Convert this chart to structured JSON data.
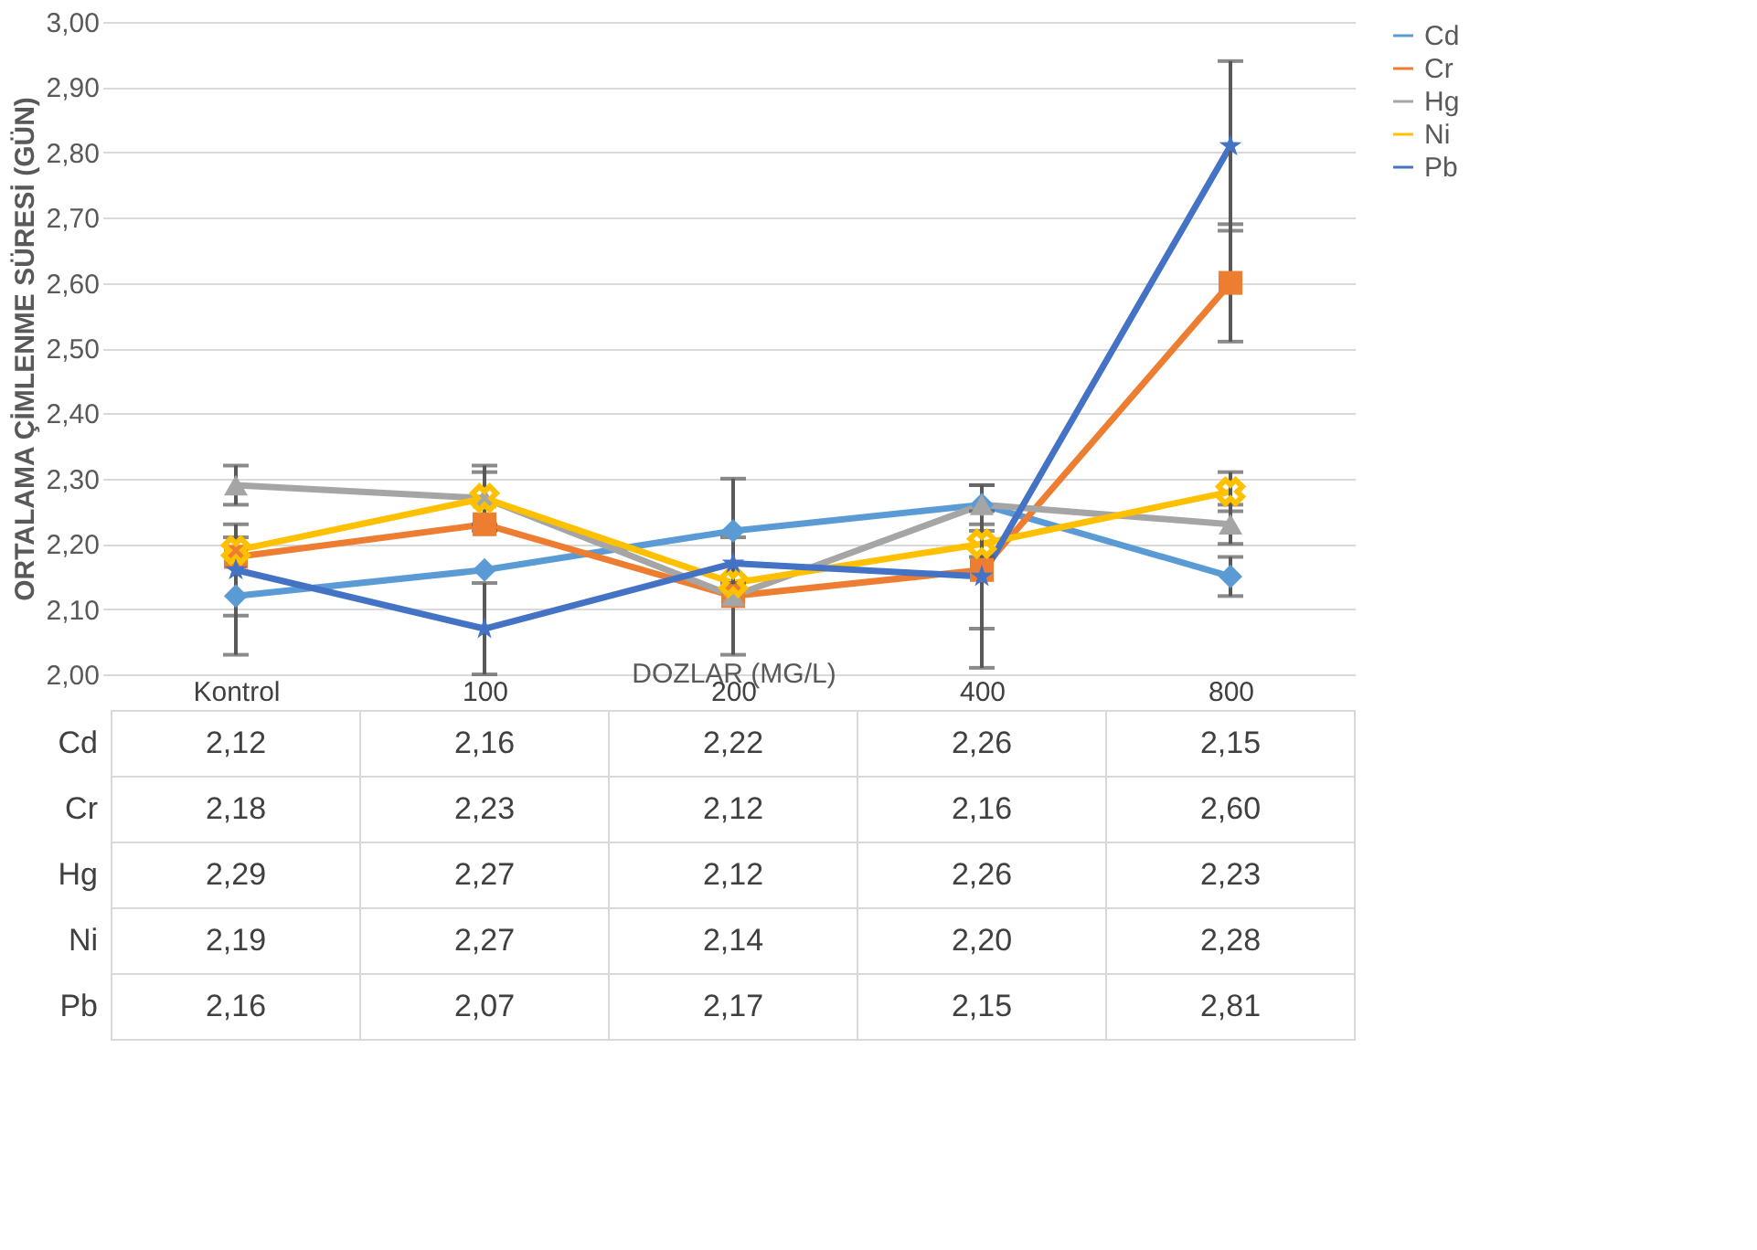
{
  "chart_data": {
    "type": "line",
    "xlabel": "DOZLAR (MG/L)",
    "ylabel": "ORTALAMA ÇİMLENME SÜRESİ (GÜN)",
    "categories": [
      "Kontrol",
      "100",
      "200",
      "400",
      "800"
    ],
    "ylim": [
      2.0,
      3.0
    ],
    "yticks": [
      {
        "value": 2.0,
        "label": "2,00"
      },
      {
        "value": 2.1,
        "label": "2,10"
      },
      {
        "value": 2.2,
        "label": "2,20"
      },
      {
        "value": 2.3,
        "label": "2,30"
      },
      {
        "value": 2.4,
        "label": "2,40"
      },
      {
        "value": 2.5,
        "label": "2,50"
      },
      {
        "value": 2.6,
        "label": "2,60"
      },
      {
        "value": 2.7,
        "label": "2,70"
      },
      {
        "value": 2.8,
        "label": "2,80"
      },
      {
        "value": 2.9,
        "label": "2,90"
      },
      {
        "value": 3.0,
        "label": "3,00"
      }
    ],
    "grid": "y",
    "legend": "right",
    "series": [
      {
        "name": "Cd",
        "color": "#5b9bd5",
        "marker": "diamond",
        "values": [
          2.12,
          2.16,
          2.22,
          2.26,
          2.15
        ],
        "value_labels": [
          "2,12",
          "2,16",
          "2,22",
          "2,26",
          "2,15"
        ],
        "errors": [
          0.09,
          null,
          0.08,
          0.03,
          0.03
        ]
      },
      {
        "name": "Cr",
        "color": "#ed7d31",
        "marker": "square",
        "values": [
          2.18,
          2.23,
          2.12,
          2.16,
          2.6
        ],
        "value_labels": [
          "2,18",
          "2,23",
          "2,12",
          "2,16",
          "2,60"
        ],
        "errors": [
          null,
          null,
          null,
          0.09,
          0.09
        ]
      },
      {
        "name": "Hg",
        "color": "#a5a5a5",
        "marker": "triangle",
        "values": [
          2.29,
          2.27,
          2.12,
          2.26,
          2.23
        ],
        "value_labels": [
          "2,29",
          "2,27",
          "2,12",
          "2,26",
          "2,23"
        ],
        "errors": [
          0.03,
          0.05,
          0.09,
          null,
          0.03
        ]
      },
      {
        "name": "Ni",
        "color": "#ffc000",
        "marker": "cross",
        "values": [
          2.19,
          2.27,
          2.14,
          2.2,
          2.28
        ],
        "value_labels": [
          "2,19",
          "2,27",
          "2,14",
          "2,20",
          "2,28"
        ],
        "errors": [
          null,
          0.04,
          null,
          0.02,
          0.03
        ]
      },
      {
        "name": "Pb",
        "color": "#4472c4",
        "marker": "star",
        "values": [
          2.16,
          2.07,
          2.17,
          2.15,
          2.81
        ],
        "value_labels": [
          "2,16",
          "2,07",
          "2,17",
          "2,15",
          "2,81"
        ],
        "errors": [
          0.07,
          0.07,
          null,
          0.14,
          0.13
        ]
      }
    ]
  }
}
